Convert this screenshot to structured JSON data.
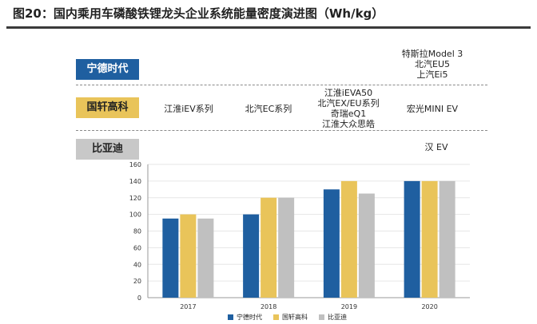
{
  "title": "图20：国内乘用车磷酸铁锂龙头企业系统能量密度演进图（Wh/kg）",
  "bands": {
    "catl": "宁德时代",
    "gx": "国轩高科",
    "byd": "比亚迪"
  },
  "annotations": {
    "catl_2020": [
      "特斯拉Model 3",
      "北汽EU5",
      "上汽Ei5"
    ],
    "gx_2017": [
      "江淮iEV系列"
    ],
    "gx_2018": [
      "北汽EC系列"
    ],
    "gx_2019": [
      "江淮iEVA50",
      "北汽EX/EU系列",
      "奇瑞eQ1",
      "江淮大众思皓"
    ],
    "gx_2020": [
      "宏光MINI EV"
    ],
    "byd_2020": [
      "汉 EV"
    ]
  },
  "colors": {
    "catl": "#1f5fa0",
    "gx": "#e9c45a",
    "byd": "#c0c0c0"
  },
  "chart_data": {
    "type": "bar",
    "categories": [
      "2017",
      "2018",
      "2019",
      "2020"
    ],
    "series": [
      {
        "name": "宁德时代",
        "values": [
          95,
          100,
          130,
          140
        ]
      },
      {
        "name": "国轩高科",
        "values": [
          100,
          120,
          140,
          140
        ]
      },
      {
        "name": "比亚迪",
        "values": [
          95,
          120,
          125,
          140
        ]
      }
    ],
    "ylim": [
      0,
      160
    ],
    "yticks": [
      0,
      20,
      40,
      60,
      80,
      100,
      120,
      140,
      160
    ],
    "grid": true,
    "legend": "bottom"
  }
}
